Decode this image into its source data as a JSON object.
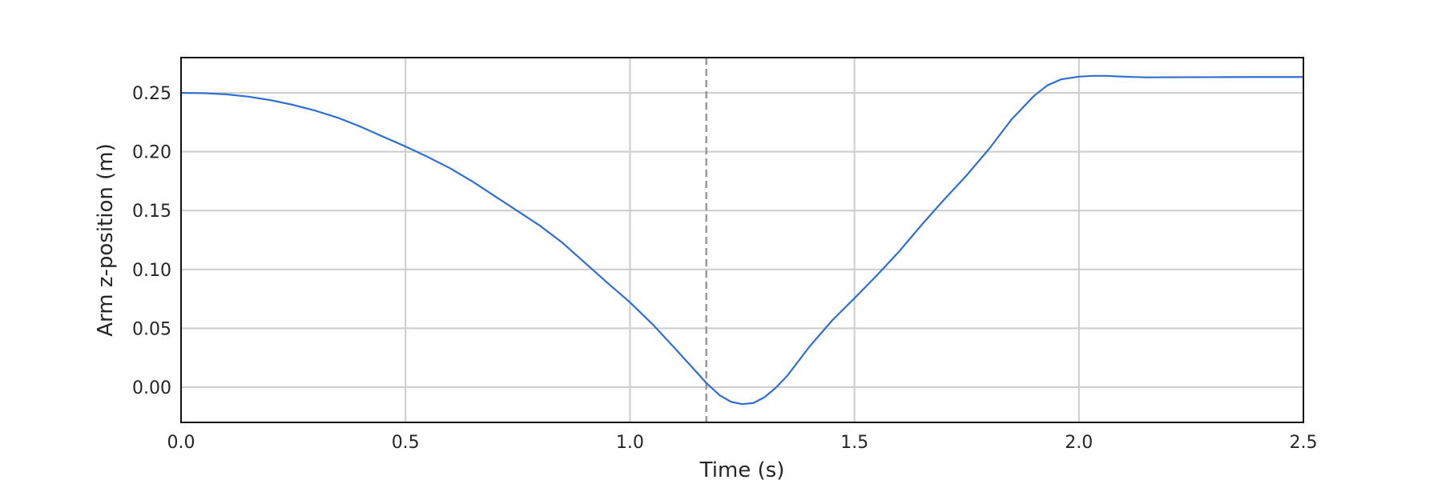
{
  "chart_data": {
    "type": "line",
    "title": "",
    "xlabel": "Time (s)",
    "ylabel": "Arm z-position (m)",
    "xlim": [
      0.0,
      2.5
    ],
    "ylim": [
      -0.03,
      0.28
    ],
    "grid": true,
    "xticks": [
      0.0,
      0.5,
      1.0,
      1.5,
      2.0,
      2.5
    ],
    "xtick_labels": [
      "0.0",
      "0.5",
      "1.0",
      "1.5",
      "2.0",
      "2.5"
    ],
    "yticks": [
      0.0,
      0.05,
      0.1,
      0.15,
      0.2,
      0.25
    ],
    "ytick_labels": [
      "0.00",
      "0.05",
      "0.10",
      "0.15",
      "0.20",
      "0.25"
    ],
    "vline": {
      "x": 1.17,
      "style": "dashed",
      "color": "#999999"
    },
    "series": [
      {
        "color": "#2f6fcf",
        "x": [
          0.0,
          0.05,
          0.1,
          0.15,
          0.2,
          0.25,
          0.3,
          0.35,
          0.4,
          0.45,
          0.5,
          0.55,
          0.6,
          0.65,
          0.7,
          0.75,
          0.8,
          0.85,
          0.9,
          0.95,
          1.0,
          1.05,
          1.1,
          1.15,
          1.17,
          1.2,
          1.225,
          1.25,
          1.275,
          1.3,
          1.325,
          1.35,
          1.4,
          1.45,
          1.5,
          1.55,
          1.6,
          1.65,
          1.7,
          1.75,
          1.8,
          1.85,
          1.9,
          1.93,
          1.96,
          2.0,
          2.03,
          2.06,
          2.1,
          2.15,
          2.2,
          2.3,
          2.4,
          2.5
        ],
        "y": [
          0.25,
          0.2498,
          0.2488,
          0.2468,
          0.2438,
          0.2398,
          0.2348,
          0.2288,
          0.2213,
          0.2128,
          0.2045,
          0.1955,
          0.1858,
          0.1745,
          0.162,
          0.1495,
          0.137,
          0.1225,
          0.1055,
          0.0885,
          0.072,
          0.0535,
          0.033,
          0.012,
          0.0035,
          -0.007,
          -0.0125,
          -0.0145,
          -0.0135,
          -0.0085,
          -0.0005,
          0.0095,
          0.0345,
          0.0565,
          0.0755,
          0.095,
          0.1155,
          0.138,
          0.1595,
          0.18,
          0.2025,
          0.2275,
          0.2475,
          0.2565,
          0.2615,
          0.2638,
          0.2645,
          0.2645,
          0.2638,
          0.2632,
          0.2633,
          0.2634,
          0.2635,
          0.2635
        ]
      }
    ]
  }
}
